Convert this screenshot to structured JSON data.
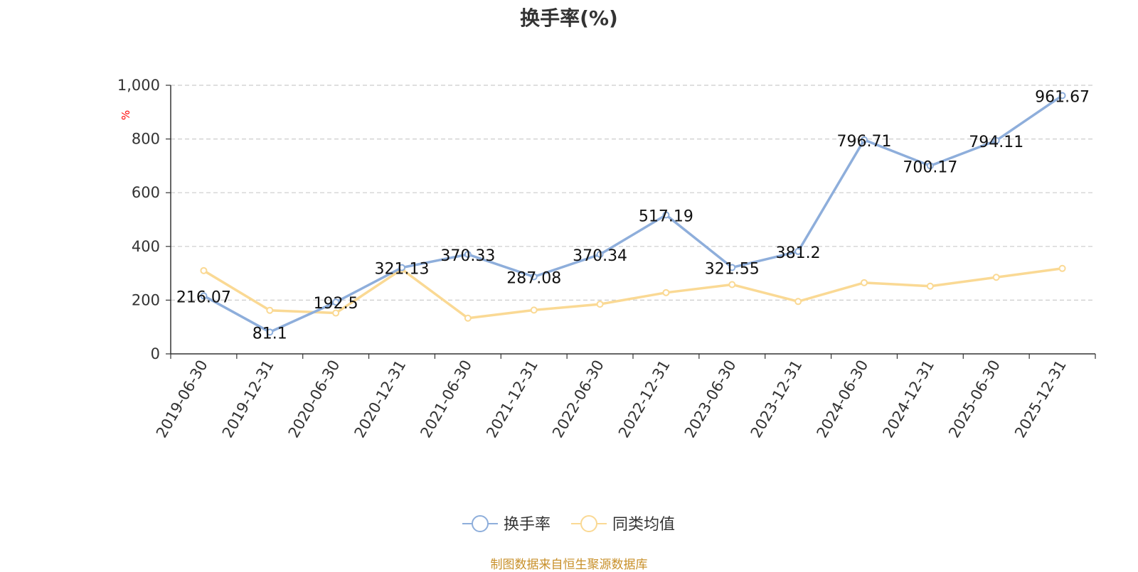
{
  "chart_data": {
    "type": "line",
    "title": "换手率(%)",
    "ylabel": "%",
    "ylim": [
      0,
      1000
    ],
    "yticks": [
      0,
      200,
      400,
      600,
      800,
      1000
    ],
    "ytick_labels": [
      "0",
      "200",
      "400",
      "600",
      "800",
      "1,000"
    ],
    "grid": true,
    "legend_position": "bottom",
    "categories": [
      "2019-06-30",
      "2019-12-31",
      "2020-06-30",
      "2020-12-31",
      "2021-06-30",
      "2021-12-31",
      "2022-06-30",
      "2022-12-31",
      "2023-06-30",
      "2023-12-31",
      "2024-06-30",
      "2024-12-31",
      "2025-06-30",
      "2025-12-31"
    ],
    "series": [
      {
        "name": "换手率",
        "color": "#8eaedb",
        "values": [
          216.07,
          81.1,
          192.5,
          321.13,
          370.33,
          287.08,
          370.34,
          517.19,
          321.55,
          381.2,
          796.71,
          700.17,
          794.11,
          961.67
        ],
        "labels": [
          "216.07",
          "81.1",
          "192.5",
          "321.13",
          "370.33",
          "287.08",
          "370.34",
          "517.19",
          "321.55",
          "381.2",
          "796.71",
          "700.17",
          "794.11",
          "961.67"
        ]
      },
      {
        "name": "同类均值",
        "color": "#fad994",
        "values": [
          310,
          162,
          152,
          315,
          133,
          163,
          185,
          228,
          258,
          195,
          265,
          252,
          285,
          318
        ]
      }
    ]
  },
  "source_text": "制图数据来自恒生聚源数据库"
}
